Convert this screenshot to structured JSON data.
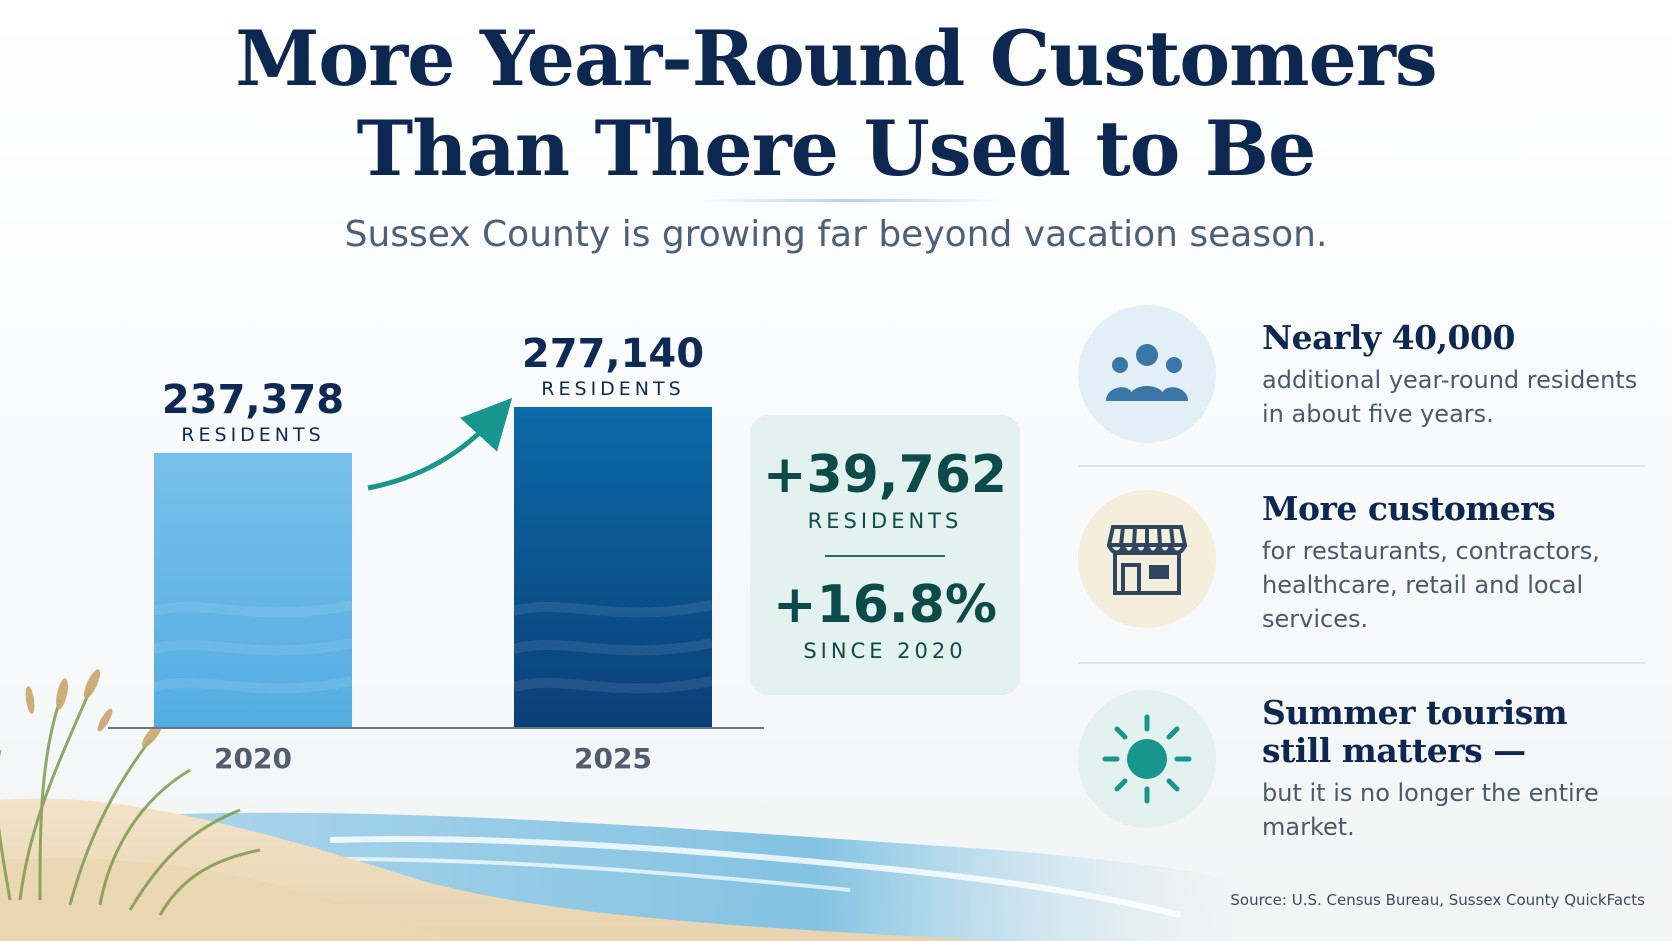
{
  "title_line1": "More Year-Round Customers",
  "title_line2": "Than There Used to Be",
  "subtitle": "Sussex County is growing far beyond vacation season.",
  "chart_data": {
    "type": "bar",
    "categories": [
      "2020",
      "2025"
    ],
    "values": [
      237378,
      277140
    ],
    "value_labels": [
      "237,378",
      "277,140"
    ],
    "unit_label": "RESIDENTS",
    "colors": [
      "#62b3e3",
      "#0b4f8c"
    ]
  },
  "stat_box": {
    "change_value": "+39,762",
    "change_unit": "RESIDENTS",
    "pct_value": "+16.8%",
    "pct_unit": "SINCE 2020"
  },
  "items": [
    {
      "icon": "people-icon",
      "headline": "Nearly 40,000",
      "body": "additional year-round residents in about five years."
    },
    {
      "icon": "storefront-icon",
      "headline": "More customers",
      "body": "for restaurants, contractors, healthcare, retail and local services."
    },
    {
      "icon": "sun-icon",
      "headline_line1": "Summer tourism",
      "headline_line2": "still matters —",
      "body": "but it is no longer the entire market."
    }
  ],
  "source": "Source: U.S. Census Bureau, Sussex County QuickFacts"
}
